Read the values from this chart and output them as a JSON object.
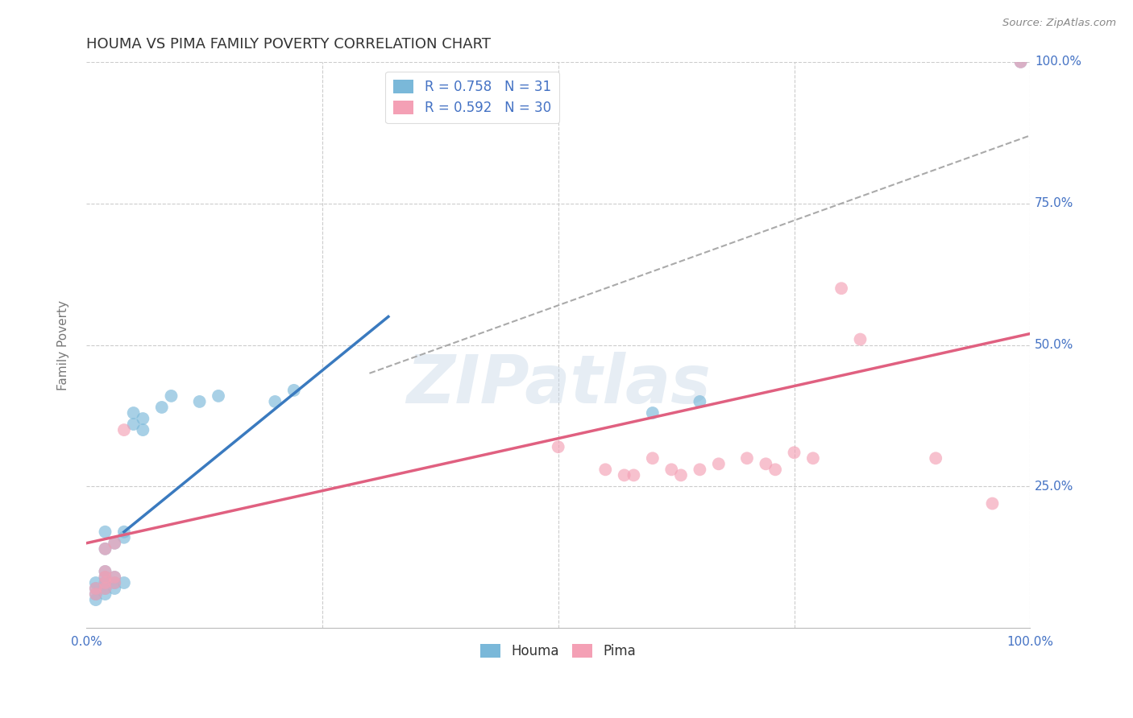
{
  "title": "HOUMA VS PIMA FAMILY POVERTY CORRELATION CHART",
  "source": "Source: ZipAtlas.com",
  "ylabel": "Family Poverty",
  "xlim": [
    0,
    1
  ],
  "ylim": [
    0,
    1
  ],
  "xticks": [
    0.0,
    0.25,
    0.5,
    0.75,
    1.0
  ],
  "yticks": [
    0.0,
    0.25,
    0.5,
    0.75,
    1.0
  ],
  "houma_color": "#7ab8d9",
  "pima_color": "#f4a0b5",
  "houma_line_color": "#3a7abf",
  "pima_line_color": "#e06080",
  "dashed_color": "#aaaaaa",
  "houma_R": 0.758,
  "houma_N": 31,
  "pima_R": 0.592,
  "pima_N": 30,
  "watermark_text": "ZIPatlas",
  "background_color": "#ffffff",
  "grid_color": "#cccccc",
  "houma_scatter": [
    [
      0.01,
      0.05
    ],
    [
      0.01,
      0.06
    ],
    [
      0.01,
      0.07
    ],
    [
      0.01,
      0.08
    ],
    [
      0.02,
      0.06
    ],
    [
      0.02,
      0.07
    ],
    [
      0.02,
      0.08
    ],
    [
      0.02,
      0.09
    ],
    [
      0.02,
      0.1
    ],
    [
      0.02,
      0.14
    ],
    [
      0.02,
      0.17
    ],
    [
      0.03,
      0.07
    ],
    [
      0.03,
      0.08
    ],
    [
      0.03,
      0.09
    ],
    [
      0.03,
      0.15
    ],
    [
      0.04,
      0.08
    ],
    [
      0.04,
      0.16
    ],
    [
      0.04,
      0.17
    ],
    [
      0.05,
      0.36
    ],
    [
      0.05,
      0.38
    ],
    [
      0.06,
      0.35
    ],
    [
      0.06,
      0.37
    ],
    [
      0.08,
      0.39
    ],
    [
      0.09,
      0.41
    ],
    [
      0.12,
      0.4
    ],
    [
      0.14,
      0.41
    ],
    [
      0.2,
      0.4
    ],
    [
      0.22,
      0.42
    ],
    [
      0.6,
      0.38
    ],
    [
      0.65,
      0.4
    ],
    [
      0.99,
      1.0
    ]
  ],
  "pima_scatter": [
    [
      0.01,
      0.06
    ],
    [
      0.01,
      0.07
    ],
    [
      0.02,
      0.07
    ],
    [
      0.02,
      0.08
    ],
    [
      0.02,
      0.09
    ],
    [
      0.02,
      0.1
    ],
    [
      0.02,
      0.14
    ],
    [
      0.03,
      0.08
    ],
    [
      0.03,
      0.09
    ],
    [
      0.03,
      0.15
    ],
    [
      0.04,
      0.35
    ],
    [
      0.5,
      0.32
    ],
    [
      0.55,
      0.28
    ],
    [
      0.57,
      0.27
    ],
    [
      0.58,
      0.27
    ],
    [
      0.6,
      0.3
    ],
    [
      0.62,
      0.28
    ],
    [
      0.63,
      0.27
    ],
    [
      0.65,
      0.28
    ],
    [
      0.67,
      0.29
    ],
    [
      0.7,
      0.3
    ],
    [
      0.72,
      0.29
    ],
    [
      0.73,
      0.28
    ],
    [
      0.75,
      0.31
    ],
    [
      0.77,
      0.3
    ],
    [
      0.8,
      0.6
    ],
    [
      0.82,
      0.51
    ],
    [
      0.9,
      0.3
    ],
    [
      0.96,
      0.22
    ],
    [
      0.99,
      1.0
    ]
  ],
  "houma_line_x": [
    0.04,
    0.32
  ],
  "houma_line_y": [
    0.17,
    0.55
  ],
  "pima_line_x": [
    0.0,
    1.0
  ],
  "pima_line_y": [
    0.15,
    0.52
  ],
  "dashed_line_x": [
    0.3,
    1.0
  ],
  "dashed_line_y": [
    0.45,
    0.87
  ],
  "title_fontsize": 13,
  "axis_label_fontsize": 11,
  "tick_fontsize": 11,
  "legend_fontsize": 12
}
